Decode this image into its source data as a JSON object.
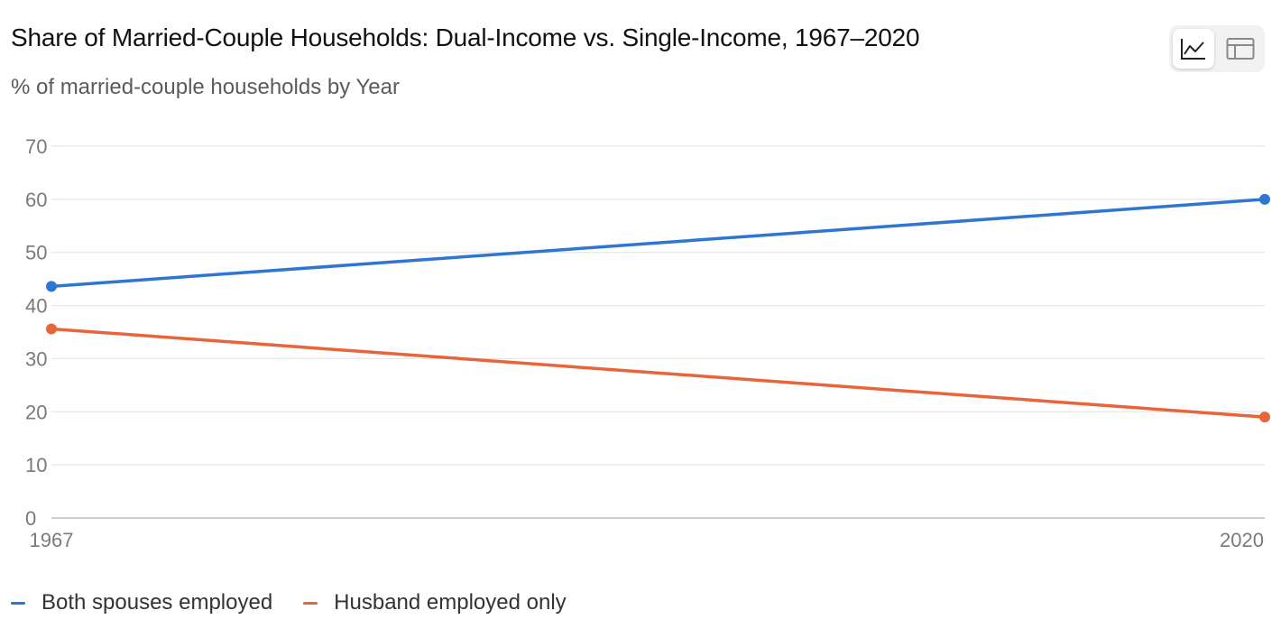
{
  "header": {
    "title": "Share of Married-Couple Households: Dual-Income vs. Single-Income, 1967–2020",
    "subtitle": "% of married-couple households by Year"
  },
  "view_toggle": {
    "active": "chart",
    "chart_icon": "line-chart-icon",
    "table_icon": "table-icon"
  },
  "colors": {
    "both_spouses": "#2f76d2",
    "husband_only": "#e8643a",
    "grid": "#e6e6e6",
    "axis": "#bdbdbd",
    "tick_text": "#7a7a7a"
  },
  "chart_data": {
    "type": "line",
    "x": [
      1967,
      2020
    ],
    "x_tick_labels": [
      "1967",
      "2020"
    ],
    "series": [
      {
        "name": "Both spouses employed",
        "values": [
          43.6,
          60.0
        ],
        "color": "#2f76d2"
      },
      {
        "name": "Husband employed only",
        "values": [
          35.6,
          19.0
        ],
        "color": "#e8643a"
      }
    ],
    "ylim": [
      0,
      70
    ],
    "y_ticks": [
      0,
      10,
      20,
      30,
      40,
      50,
      60,
      70
    ],
    "grid": true,
    "legend_position": "bottom-left",
    "title": "Share of Married-Couple Households: Dual-Income vs. Single-Income, 1967–2020",
    "subtitle": "% of married-couple households by Year",
    "xlabel": "",
    "ylabel": ""
  }
}
